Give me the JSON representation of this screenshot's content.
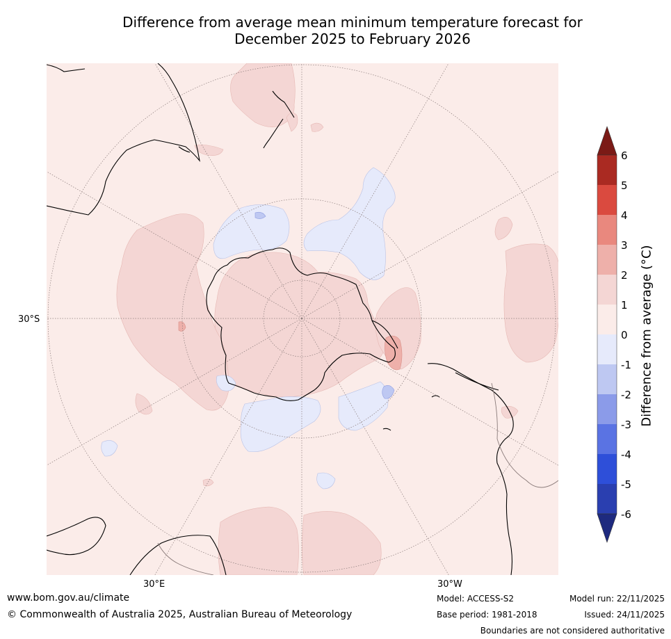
{
  "title": {
    "line1": "Difference from average mean minimum temperature forecast for",
    "line2": "December 2025 to February 2026"
  },
  "map": {
    "projection": "south polar stereographic",
    "axis_labels": {
      "lat_left": "30°S",
      "lon_bottom_left": "30°E",
      "lon_bottom_right": "30°W"
    }
  },
  "colorbar": {
    "label": "Difference from average (°C)",
    "ticks": [
      "6",
      "5",
      "4",
      "3",
      "2",
      "1",
      "0",
      "-1",
      "-2",
      "-3",
      "-4",
      "-5",
      "-6"
    ],
    "colors": [
      "#7b1a16",
      "#aa2a22",
      "#da4a3f",
      "#e9887e",
      "#eeb0aa",
      "#f4d6d4",
      "#fbece9",
      "#e6eafb",
      "#bec8f2",
      "#8b9be9",
      "#5a73e3",
      "#2e4fd9",
      "#2a3fb0",
      "#1e2a7f"
    ],
    "colors_note_order": "top arrow, 5-6, 4-5, 3-4, 2-3, 1-2, 0-1, -1-0, -2--1, -3--2, -4--3, -5--4, -6--5, bottom arrow"
  },
  "footer": {
    "url": "www.bom.gov.au/climate",
    "copyright": "© Commonwealth of Australia 2025, Australian Bureau of Meteorology",
    "model": "Model: ACCESS-S2",
    "base_period": "Base period: 1981-2018",
    "model_run": "Model run: 22/11/2025",
    "issued": "Issued: 24/11/2025",
    "disclaimer": "Boundaries are not considered authoritative"
  }
}
